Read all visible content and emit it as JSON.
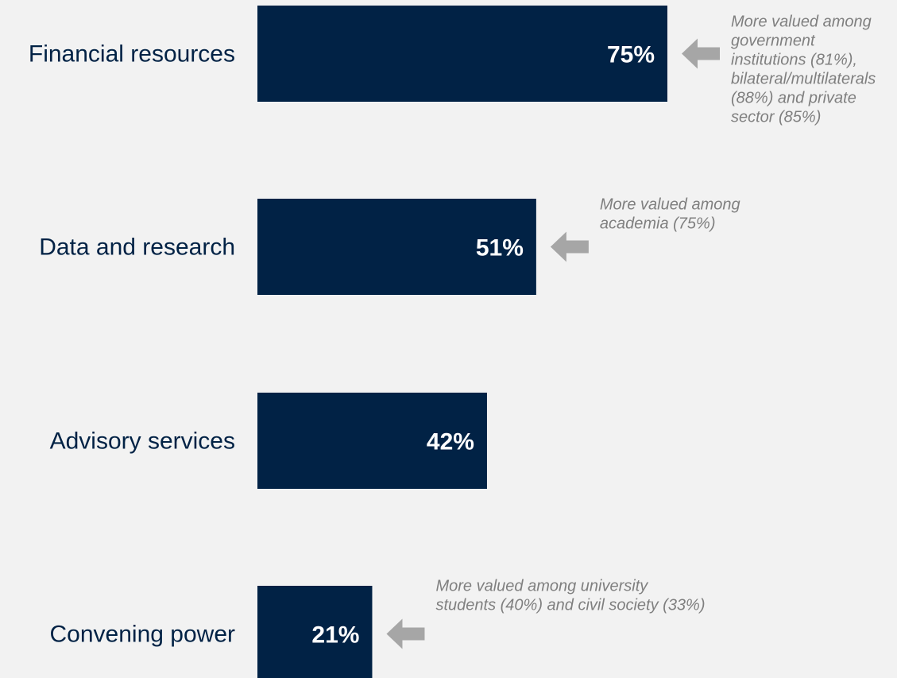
{
  "chart_data": {
    "type": "bar",
    "orientation": "horizontal",
    "categories": [
      "Financial resources",
      "Data and research",
      "Advisory services",
      "Convening power"
    ],
    "values": [
      75,
      51,
      42,
      21
    ],
    "value_labels": [
      "75%",
      "51%",
      "42%",
      "21%"
    ],
    "xlim": [
      0,
      100
    ],
    "unit": "%",
    "grid": false,
    "legend": false,
    "annotations": [
      {
        "category": "Financial resources",
        "lines": [
          "More valued among",
          "government",
          "institutions (81%),",
          "bilateral/multilaterals",
          "(88%) and private",
          "sector (85%)"
        ]
      },
      {
        "category": "Data and research",
        "lines": [
          "More valued among",
          "academia (75%)"
        ]
      },
      {
        "category": "Convening power",
        "lines": [
          "More valued among university",
          "students (40%) and civil society (33%)"
        ]
      }
    ]
  },
  "colors": {
    "background": "#f2f2f2",
    "bar": "#012245",
    "category_text": "#012245",
    "value_text": "#ffffff",
    "arrow": "#a6a6a6",
    "note_text": "#7f7f7f"
  }
}
